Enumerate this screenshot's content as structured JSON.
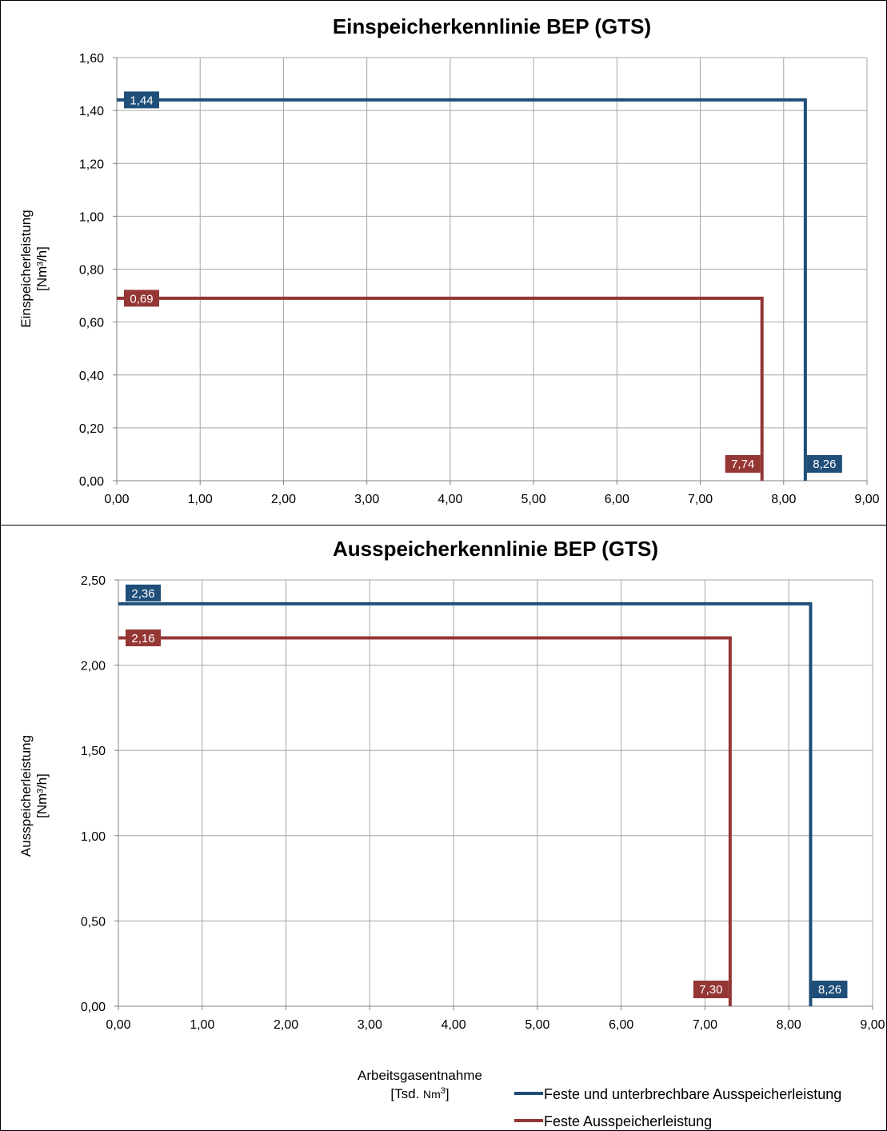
{
  "chart_data": [
    {
      "type": "line",
      "title": "Einspeicherkennlinie BEP (GTS)",
      "ylabel": "Einspeicherleistung",
      "ylabel_unit": "[Nm³/h]",
      "xlim": [
        0,
        9
      ],
      "ylim": [
        0,
        1.6
      ],
      "x_ticks": [
        "0,00",
        "1,00",
        "2,00",
        "3,00",
        "4,00",
        "5,00",
        "6,00",
        "7,00",
        "8,00",
        "9,00"
      ],
      "y_ticks": [
        "0,00",
        "0,20",
        "0,40",
        "0,60",
        "0,80",
        "1,00",
        "1,20",
        "1,40",
        "1,60"
      ],
      "grid": true,
      "series": [
        {
          "color": "#1F4E79",
          "points": [
            [
              0,
              1.44
            ],
            [
              8.26,
              1.44
            ],
            [
              8.26,
              0
            ]
          ],
          "labels": [
            "1,44",
            "8,26"
          ]
        },
        {
          "color": "#943634",
          "points": [
            [
              0,
              0.69
            ],
            [
              7.74,
              0.69
            ],
            [
              7.74,
              0
            ]
          ],
          "labels": [
            "0,69",
            "7,74"
          ]
        }
      ]
    },
    {
      "type": "line",
      "title": "Ausspeicherkennlinie BEP (GTS)",
      "ylabel": "Ausspeicherleistung",
      "ylabel_unit": "[Nm³/h]",
      "xlabel": "Arbeitsgasentnahme",
      "xlabel_unit_prefix": "[Tsd. ",
      "xlabel_unit_main": "Nm",
      "xlabel_unit_sup": "3",
      "xlabel_unit_suffix": "]",
      "xlim": [
        0,
        9
      ],
      "ylim": [
        0,
        2.5
      ],
      "x_ticks": [
        "0,00",
        "1,00",
        "2,00",
        "3,00",
        "4,00",
        "5,00",
        "6,00",
        "7,00",
        "8,00",
        "9,00"
      ],
      "y_ticks": [
        "0,00",
        "0,50",
        "1,00",
        "1,50",
        "2,00",
        "2,50"
      ],
      "grid": true,
      "series": [
        {
          "name": "Feste und unterbrechbare Ausspeicherleistung",
          "color": "#1F4E79",
          "points": [
            [
              0,
              2.36
            ],
            [
              8.26,
              2.36
            ],
            [
              8.26,
              0
            ]
          ],
          "labels": [
            "2,36",
            "8,26"
          ]
        },
        {
          "name": "Feste Ausspeicherleistung",
          "color": "#943634",
          "points": [
            [
              0,
              2.16
            ],
            [
              7.3,
              2.16
            ],
            [
              7.3,
              0
            ]
          ],
          "labels": [
            "2,16",
            "7,30"
          ]
        }
      ]
    }
  ],
  "legend": {
    "position": "bottom-right",
    "items": [
      "Feste und unterbrechbare Ausspeicherleistung",
      "Feste Ausspeicherleistung"
    ]
  }
}
